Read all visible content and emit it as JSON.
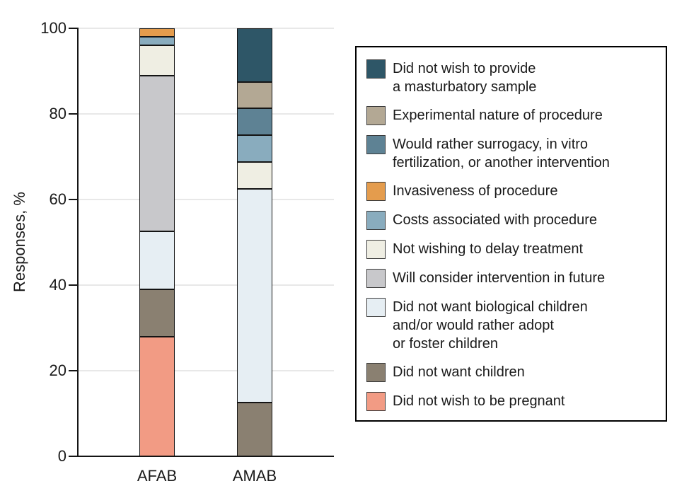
{
  "chart_data": {
    "type": "bar",
    "stacked": true,
    "title": "",
    "xlabel": "",
    "ylabel": "Responses, %",
    "ylim": [
      0,
      100
    ],
    "yticks": [
      0,
      20,
      40,
      60,
      80,
      100
    ],
    "grid": true,
    "legend_position": "right",
    "categories": [
      "AFAB",
      "AMAB"
    ],
    "series": [
      {
        "key": "pregnant",
        "name": "Did not wish to be pregnant",
        "color": "#F29B84",
        "values": [
          28,
          0
        ],
        "legend_lines": [
          "Did not wish to be pregnant"
        ]
      },
      {
        "key": "no-children",
        "name": "Did not want children",
        "color": "#8A8071",
        "values": [
          11,
          12.5
        ],
        "legend_lines": [
          "Did not want children"
        ]
      },
      {
        "key": "no-bio-children",
        "name": "Did not want biological children and/or would rather adopt or foster children",
        "color": "#E6EEF3",
        "values": [
          13.5,
          50
        ],
        "legend_lines": [
          "Did not want biological children",
          "and/or would rather adopt",
          "or foster children"
        ]
      },
      {
        "key": "consider-future",
        "name": "Will consider intervention in future",
        "color": "#C8C8CB",
        "values": [
          36.5,
          0
        ],
        "legend_lines": [
          "Will consider intervention in future"
        ]
      },
      {
        "key": "no-delay",
        "name": "Not wishing to delay treatment",
        "color": "#EFEEE3",
        "values": [
          7,
          6.25
        ],
        "legend_lines": [
          "Not wishing to delay treatment"
        ]
      },
      {
        "key": "costs",
        "name": "Costs associated with procedure",
        "color": "#89ACBE",
        "values": [
          2,
          6.25
        ],
        "legend_lines": [
          "Costs associated with procedure"
        ]
      },
      {
        "key": "invasiveness",
        "name": "Invasiveness of procedure",
        "color": "#E49C4D",
        "values": [
          2,
          0
        ],
        "legend_lines": [
          "Invasiveness of procedure"
        ]
      },
      {
        "key": "surrogacy",
        "name": "Would rather surrogacy, in vitro fertilization, or another intervention",
        "color": "#5E8294",
        "values": [
          0,
          6.25
        ],
        "legend_lines": [
          "Would rather surrogacy, in vitro",
          "fertilization, or another intervention"
        ]
      },
      {
        "key": "experimental",
        "name": "Experimental nature of procedure",
        "color": "#B3A894",
        "values": [
          0,
          6.25
        ],
        "legend_lines": [
          "Experimental nature of procedure"
        ]
      },
      {
        "key": "masturbatory",
        "name": "Did not wish to provide a masturbatory sample",
        "color": "#2E5667",
        "values": [
          0,
          12.5
        ],
        "legend_lines": [
          "Did not wish to provide",
          "a masturbatory sample"
        ]
      }
    ],
    "legend_order_top_to_bottom": [
      "masturbatory",
      "experimental",
      "surrogacy",
      "invasiveness",
      "costs",
      "no-delay",
      "consider-future",
      "no-bio-children",
      "no-children",
      "pregnant"
    ],
    "colors": {
      "axis": "#141414",
      "gridline": "#e8e8e8",
      "text": "#1a1a1a",
      "background": "#ffffff"
    }
  }
}
